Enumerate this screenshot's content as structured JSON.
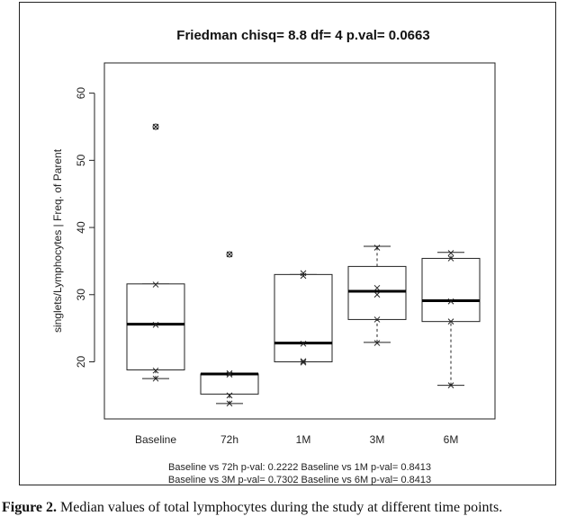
{
  "chart_data": {
    "type": "box",
    "title": "Friedman chisq= 8.8  df= 4  p.val= 0.0663",
    "xlabel": "",
    "ylabel": "singlets/Lymphocytes | Freq. of Parent",
    "ylim": [
      11.5,
      64.5
    ],
    "yticks": [
      20,
      30,
      40,
      50,
      60
    ],
    "categories": [
      "Baseline",
      "72h",
      "1M",
      "3M",
      "6M"
    ],
    "boxes": [
      {
        "category": "Baseline",
        "whisker_low": 17.5,
        "q1": 18.8,
        "median": 25.6,
        "q3": 31.6,
        "whisker_high": 31.6,
        "outliers": [
          55.0
        ],
        "points": [
          17.5,
          18.7,
          25.5,
          31.5,
          55.0
        ]
      },
      {
        "category": "72h",
        "whisker_low": 13.8,
        "q1": 15.2,
        "median": 18.2,
        "q3": 18.2,
        "whisker_high": 18.2,
        "outliers": [
          36.0
        ],
        "points": [
          13.8,
          15.0,
          18.1,
          18.3,
          36.0
        ]
      },
      {
        "category": "1M",
        "whisker_low": 20.0,
        "q1": 20.0,
        "median": 22.8,
        "q3": 33.0,
        "whisker_high": 33.0,
        "outliers": [],
        "points": [
          19.9,
          20.1,
          22.7,
          32.8,
          33.2
        ]
      },
      {
        "category": "3M",
        "whisker_low": 22.9,
        "q1": 26.3,
        "median": 30.5,
        "q3": 34.2,
        "whisker_high": 37.2,
        "outliers": [],
        "points": [
          22.8,
          26.3,
          30.0,
          31.0,
          37.0
        ]
      },
      {
        "category": "6M",
        "whisker_low": 16.5,
        "q1": 26.0,
        "median": 29.1,
        "q3": 35.4,
        "whisker_high": 36.3,
        "outliers": [],
        "points": [
          16.5,
          26.0,
          29.0,
          35.4,
          36.2
        ]
      }
    ],
    "footnote_lines": [
      "Baseline vs 72h p-val: 0.2222  Baseline vs 1M p-val= 0.8413",
      "Baseline vs 3M p-val= 0.7302  Baseline vs 6M p-val= 0.8413"
    ],
    "grid": false,
    "legend": "none"
  },
  "caption": {
    "label": "Figure 2.",
    "text": " Median values of total lymphocytes during the study at different time points."
  }
}
